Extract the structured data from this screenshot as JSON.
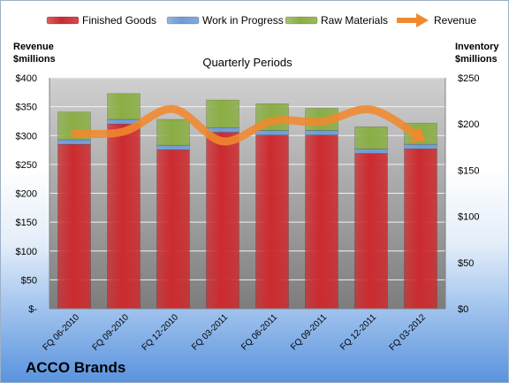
{
  "chart_data": {
    "type": "bar",
    "title": "Quarterly Periods",
    "company": "ACCO Brands",
    "categories": [
      "FQ 06-2010",
      "FQ 09-2010",
      "FQ 12-2010",
      "FQ 03-2011",
      "FQ 06-2011",
      "FQ 09-2011",
      "FQ 12-2011",
      "FQ 03-2012"
    ],
    "stacked": true,
    "series": [
      {
        "name": "Finished Goods",
        "axis": "right",
        "color": "#cc2b2f",
        "values": [
          178,
          200,
          172,
          191,
          188,
          188,
          168,
          173
        ]
      },
      {
        "name": "Work in Progress",
        "axis": "right",
        "color": "#6f9bd6",
        "values": [
          5,
          5,
          5,
          5,
          5,
          5,
          5,
          5
        ]
      },
      {
        "name": "Raw Materials",
        "axis": "right",
        "color": "#8aae44",
        "values": [
          30,
          28,
          28,
          30,
          29,
          24,
          24,
          23
        ]
      },
      {
        "name": "Revenue",
        "type": "line",
        "axis": "left",
        "color": "#f0892e",
        "values": [
          303,
          307,
          346,
          290,
          325,
          324,
          345,
          296
        ]
      }
    ],
    "ylabel_left": [
      "Revenue",
      "$millions"
    ],
    "ylabel_right": [
      "Inventory",
      "$millions"
    ],
    "ylim_left": [
      0,
      400
    ],
    "ylim_right": [
      0,
      250
    ],
    "yticks_left": [
      "$-",
      "$50",
      "$100",
      "$150",
      "$200",
      "$250",
      "$300",
      "$350",
      "$400"
    ],
    "yticks_right": [
      "$0",
      "$50",
      "$100",
      "$150",
      "$200",
      "$250"
    ],
    "grid": true,
    "legend_position": "top"
  }
}
